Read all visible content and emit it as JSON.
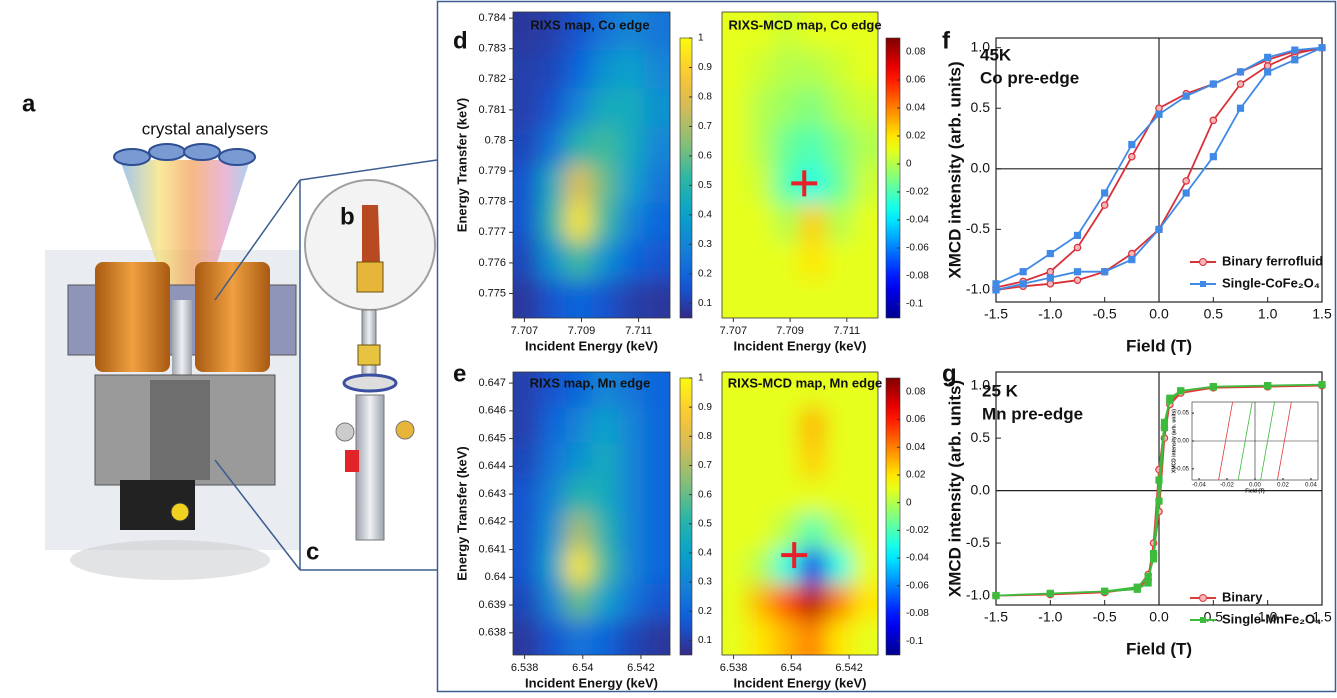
{
  "panel_labels": [
    "a",
    "b",
    "c",
    "d",
    "e",
    "f",
    "g"
  ],
  "illustration": {
    "label": "crystal analysers"
  },
  "chart_data": [
    {
      "type": "heatmap",
      "title": "RIXS map, Co edge",
      "xlabel": "Incident Energy (keV)",
      "ylabel": "Energy Transfer (keV)",
      "xlim": [
        7.7066,
        7.7121
      ],
      "ylim": [
        0.7742,
        0.7842
      ],
      "xticks": [
        7.707,
        7.709,
        7.711
      ],
      "yticks": [
        0.775,
        0.776,
        0.777,
        0.778,
        0.779,
        0.78,
        0.781,
        0.782,
        0.783,
        0.784
      ],
      "colormap": "parula",
      "zlim": [
        0.05,
        1.0
      ],
      "colorbar_ticks": [
        0.1,
        0.2,
        0.3,
        0.4,
        0.5,
        0.6,
        0.7,
        0.8,
        0.9,
        1
      ],
      "z": [
        [
          0.08,
          0.1,
          0.15,
          0.25,
          0.3,
          0.25
        ],
        [
          0.1,
          0.12,
          0.2,
          0.35,
          0.4,
          0.3
        ],
        [
          0.1,
          0.15,
          0.3,
          0.45,
          0.45,
          0.35
        ],
        [
          0.12,
          0.25,
          0.5,
          0.55,
          0.45,
          0.3
        ],
        [
          0.15,
          0.45,
          0.8,
          0.6,
          0.4,
          0.25
        ],
        [
          0.15,
          0.5,
          0.95,
          0.55,
          0.3,
          0.2
        ],
        [
          0.12,
          0.35,
          0.55,
          0.35,
          0.2,
          0.15
        ],
        [
          0.08,
          0.15,
          0.2,
          0.15,
          0.1,
          0.08
        ]
      ]
    },
    {
      "type": "heatmap",
      "title": "RIXS-MCD map, Co edge",
      "xlabel": "Incident Energy (keV)",
      "xlim": [
        7.7066,
        7.7121
      ],
      "ylim": [
        0.7742,
        0.7842
      ],
      "xticks": [
        7.707,
        7.709,
        7.711
      ],
      "colormap": "jet",
      "zlim": [
        -0.11,
        0.09
      ],
      "colorbar_ticks": [
        -0.1,
        -0.08,
        -0.06,
        -0.04,
        -0.02,
        0,
        0.02,
        0.04,
        0.06,
        0.08
      ],
      "marker": {
        "x": 7.7095,
        "y": 0.7786,
        "color": "#e8202a"
      },
      "z": [
        [
          0.01,
          0.01,
          0.005,
          0.01,
          0.01,
          0.01
        ],
        [
          0.01,
          0.005,
          0.0,
          0.0,
          0.005,
          0.01
        ],
        [
          0.01,
          0.0,
          -0.005,
          -0.01,
          0.0,
          0.005
        ],
        [
          0.01,
          0.0,
          -0.015,
          -0.02,
          -0.01,
          0.0
        ],
        [
          0.01,
          0.005,
          -0.02,
          -0.03,
          -0.015,
          0.005
        ],
        [
          0.01,
          0.01,
          0.0,
          0.025,
          0.0,
          0.01
        ],
        [
          0.01,
          0.01,
          0.01,
          0.02,
          0.01,
          0.01
        ],
        [
          0.01,
          0.01,
          0.01,
          0.01,
          0.01,
          0.01
        ]
      ]
    },
    {
      "type": "heatmap",
      "title": "RIXS map, Mn edge",
      "xlabel": "Incident Energy (keV)",
      "ylabel": "Energy Transfer (keV)",
      "xlim": [
        6.5376,
        6.543
      ],
      "ylim": [
        0.6372,
        0.6474
      ],
      "xticks": [
        6.538,
        6.54,
        6.542
      ],
      "yticks": [
        0.638,
        0.639,
        0.64,
        0.641,
        0.642,
        0.643,
        0.644,
        0.645,
        0.646,
        0.647
      ],
      "colormap": "parula",
      "zlim": [
        0.05,
        1.0
      ],
      "colorbar_ticks": [
        0.1,
        0.2,
        0.3,
        0.4,
        0.5,
        0.6,
        0.7,
        0.8,
        0.9,
        1
      ],
      "z": [
        [
          0.1,
          0.15,
          0.2,
          0.3,
          0.25,
          0.2
        ],
        [
          0.1,
          0.2,
          0.3,
          0.4,
          0.3,
          0.2
        ],
        [
          0.12,
          0.25,
          0.35,
          0.45,
          0.3,
          0.2
        ],
        [
          0.15,
          0.3,
          0.5,
          0.45,
          0.3,
          0.2
        ],
        [
          0.15,
          0.35,
          0.7,
          0.5,
          0.3,
          0.2
        ],
        [
          0.15,
          0.4,
          0.95,
          0.55,
          0.3,
          0.2
        ],
        [
          0.12,
          0.3,
          0.6,
          0.4,
          0.25,
          0.15
        ],
        [
          0.08,
          0.15,
          0.25,
          0.2,
          0.12,
          0.08
        ]
      ]
    },
    {
      "type": "heatmap",
      "title": "RIXS-MCD map, Mn edge",
      "xlabel": "Incident Energy (keV)",
      "xlim": [
        6.5376,
        6.543
      ],
      "ylim": [
        0.6372,
        0.6474
      ],
      "xticks": [
        6.538,
        6.54,
        6.542
      ],
      "colormap": "jet",
      "zlim": [
        -0.11,
        0.09
      ],
      "colorbar_ticks": [
        -0.1,
        -0.08,
        -0.06,
        -0.04,
        -0.02,
        0,
        0.02,
        0.04,
        0.06,
        0.08
      ],
      "marker": {
        "x": 6.5401,
        "y": 0.6408,
        "color": "#e8202a"
      },
      "z": [
        [
          0.01,
          0.01,
          0.01,
          0.01,
          0.01,
          0.01
        ],
        [
          0.01,
          0.01,
          0.01,
          0.03,
          0.01,
          0.01
        ],
        [
          0.01,
          0.01,
          0.01,
          0.025,
          0.01,
          0.01
        ],
        [
          0.01,
          0.01,
          0.01,
          0.01,
          0.01,
          0.01
        ],
        [
          0.01,
          0.01,
          0.0,
          -0.02,
          0.0,
          0.01
        ],
        [
          0.01,
          0.0,
          -0.03,
          -0.09,
          -0.03,
          0.01
        ],
        [
          0.01,
          0.03,
          0.05,
          0.08,
          0.04,
          0.02
        ],
        [
          0.01,
          0.02,
          0.03,
          0.04,
          0.02,
          0.01
        ]
      ]
    },
    {
      "type": "line",
      "annotations": [
        "45K",
        "Co pre-edge"
      ],
      "xlabel": "Field (T)",
      "ylabel": "XMCD intensity (arb. units)",
      "xlim": [
        -1.5,
        1.5
      ],
      "ylim": [
        -1.1,
        1.08
      ],
      "zero_lines": true,
      "legend": "lower right",
      "xticks": [
        -1.5,
        {
          "value": -1,
          "label": "-1.0"
        },
        -0.5,
        {
          "value": 0,
          "label": "0.0"
        },
        0.5,
        {
          "value": 1,
          "label": "1.0"
        },
        1.5
      ],
      "yticks": [
        {
          "value": -1,
          "label": "-1.0"
        },
        -0.5,
        {
          "value": 0,
          "label": "0.0"
        },
        0.5,
        {
          "value": 1,
          "label": "1.0"
        }
      ],
      "x": [
        -1.5,
        -1.25,
        -1.0,
        -0.75,
        -0.5,
        -0.25,
        0,
        0.25,
        0.5,
        0.75,
        1.0,
        1.25,
        1.5,
        1.25,
        1.0,
        0.75,
        0.5,
        0.25,
        0,
        -0.25,
        -0.5,
        -0.75,
        -1.0,
        -1.25,
        -1.5
      ],
      "series": [
        {
          "name": "Binary ferrofluid",
          "color": "#d9303a",
          "marker": "circle",
          "values": [
            -1.0,
            -0.97,
            -0.95,
            -0.92,
            -0.85,
            -0.7,
            -0.5,
            -0.1,
            0.4,
            0.7,
            0.85,
            0.95,
            1.0,
            0.97,
            0.9,
            0.8,
            0.7,
            0.62,
            0.5,
            0.1,
            -0.3,
            -0.65,
            -0.85,
            -0.93,
            -0.98
          ]
        },
        {
          "name": "Single-CoFe₂O₄",
          "color": "#3f8ae6",
          "marker": "square",
          "values": [
            -1.0,
            -0.95,
            -0.9,
            -0.85,
            -0.85,
            -0.75,
            -0.5,
            -0.2,
            0.1,
            0.5,
            0.8,
            0.9,
            1.0,
            0.98,
            0.92,
            0.8,
            0.7,
            0.6,
            0.45,
            0.2,
            -0.2,
            -0.55,
            -0.7,
            -0.85,
            -0.95
          ]
        }
      ]
    },
    {
      "type": "line",
      "annotations": [
        "25 K",
        "Mn pre-edge"
      ],
      "xlabel": "Field (T)",
      "ylabel": "XMCD intensity (arb. units)",
      "xlim": [
        -1.5,
        1.5
      ],
      "ylim": [
        -1.09,
        1.13
      ],
      "zero_lines": true,
      "legend": "lower right",
      "xticks": [
        -1.5,
        {
          "value": -1,
          "label": "-1.0"
        },
        -0.5,
        {
          "value": 0,
          "label": "0.0"
        },
        0.5,
        {
          "value": 1,
          "label": "1.0"
        },
        1.5
      ],
      "yticks": [
        {
          "value": -1,
          "label": "-1.0"
        },
        -0.5,
        {
          "value": 0,
          "label": "0.0"
        },
        0.5,
        {
          "value": 1,
          "label": "1.0"
        }
      ],
      "x": [
        -1.5,
        -1.0,
        -0.5,
        -0.2,
        -0.1,
        -0.05,
        0,
        0.05,
        0.1,
        0.2,
        0.5,
        1.0,
        1.5,
        1.0,
        0.5,
        0.2,
        0.1,
        0.05,
        0,
        -0.05,
        -0.1,
        -0.2,
        -0.5,
        -1.0,
        -1.5
      ],
      "series": [
        {
          "name": "Binary",
          "color": "#e23b3b",
          "marker": "circle",
          "values": [
            -1.0,
            -0.99,
            -0.97,
            -0.93,
            -0.8,
            -0.6,
            -0.2,
            0.5,
            0.85,
            0.93,
            0.98,
            0.99,
            1.0,
            0.99,
            0.98,
            0.93,
            0.82,
            0.6,
            0.2,
            -0.5,
            -0.85,
            -0.93,
            -0.97,
            -0.99,
            -1.0
          ]
        },
        {
          "name": "Single-MnFe₂O₄",
          "color": "#3dbb3d",
          "marker": "square",
          "values": [
            -1.0,
            -0.98,
            -0.96,
            -0.92,
            -0.82,
            -0.65,
            -0.1,
            0.6,
            0.88,
            0.95,
            0.99,
            1.0,
            1.01,
            1.0,
            0.99,
            0.95,
            0.86,
            0.65,
            0.1,
            -0.6,
            -0.88,
            -0.94,
            -0.96,
            -0.98,
            -1.0
          ]
        }
      ]
    },
    {
      "type": "line",
      "xlabel": "Field (T)",
      "ylabel": "XMCD intensity (arb. units)",
      "xlim": [
        -0.045,
        0.045
      ],
      "ylim": [
        -0.07,
        0.07
      ],
      "zero_lines": true,
      "xticks": [
        -0.04,
        -0.02,
        {
          "value": 0,
          "label": "0.00"
        },
        0.02,
        0.04
      ],
      "yticks": [
        -0.05,
        {
          "value": 0,
          "label": "0.00"
        },
        0.05
      ],
      "series": [
        {
          "color": "#e23b3b",
          "x": [
            -0.026,
            -0.016,
            null,
            0.016,
            0.026
          ],
          "values": [
            -0.07,
            0.07,
            null,
            -0.07,
            0.07
          ]
        },
        {
          "color": "#3dbb3d",
          "x": [
            -0.012,
            -0.002,
            null,
            0.004,
            0.014
          ],
          "values": [
            -0.07,
            0.07,
            null,
            -0.07,
            0.07
          ]
        }
      ]
    }
  ]
}
